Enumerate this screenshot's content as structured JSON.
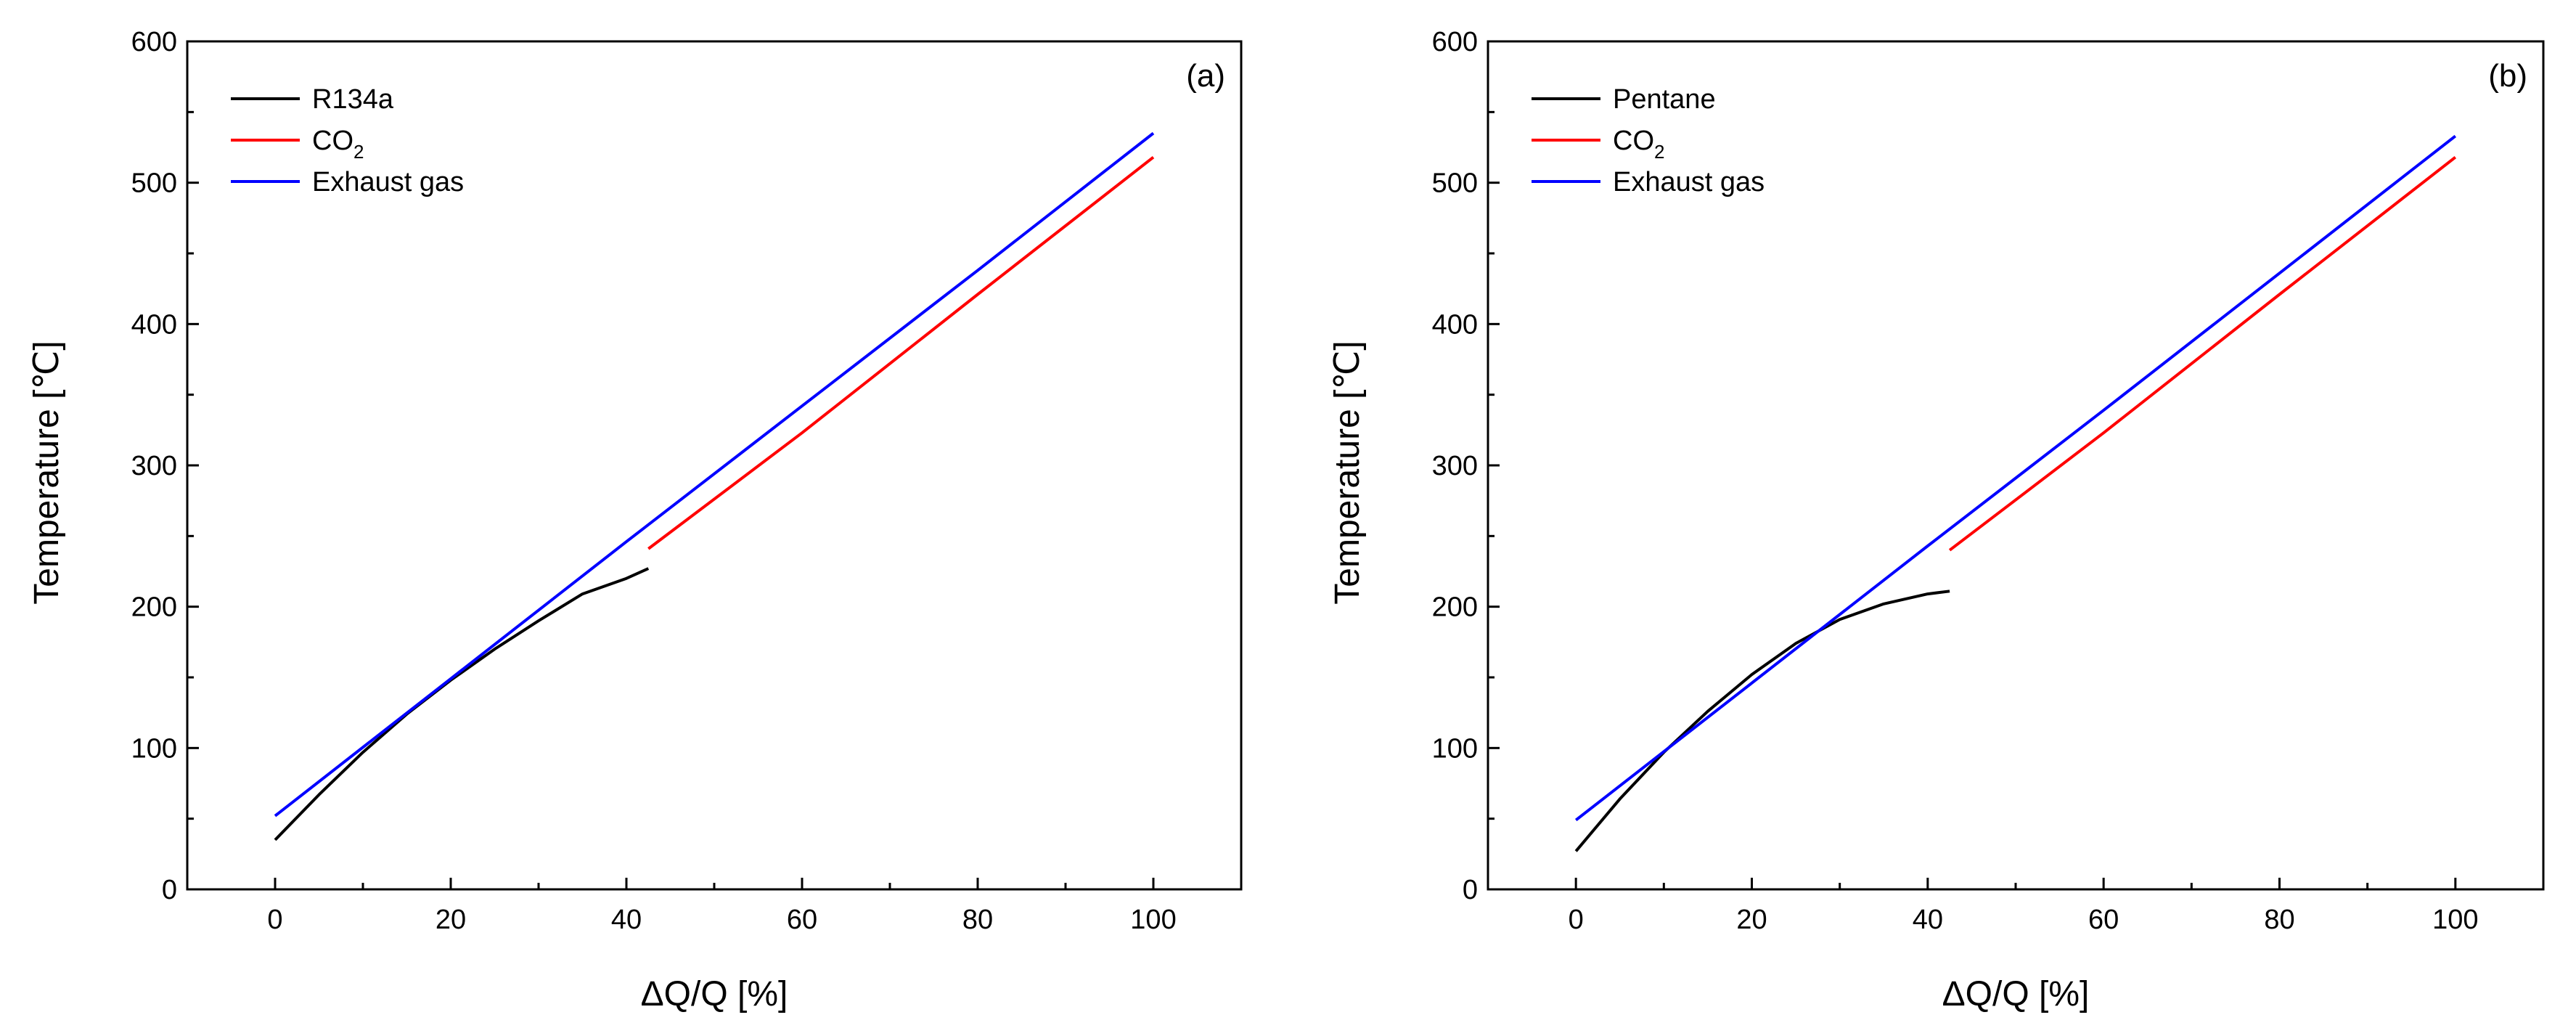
{
  "chart_data": [
    {
      "type": "line",
      "panel_label": "(a)",
      "xlabel": "ΔQ/Q [%]",
      "ylabel": "Temperature [℃]",
      "xlim": [
        -10,
        110
      ],
      "ylim": [
        0,
        600
      ],
      "xticks": [
        0,
        20,
        40,
        60,
        80,
        100
      ],
      "yticks": [
        0,
        100,
        200,
        300,
        400,
        500,
        600
      ],
      "legend_position": "top-left",
      "series": [
        {
          "name": "R134a",
          "sub": "",
          "color": "#000000",
          "x": [
            0,
            5,
            10,
            15,
            20,
            25,
            30,
            35,
            40,
            42.5
          ],
          "y": [
            35,
            67,
            97,
            124,
            148,
            170,
            190,
            209,
            220,
            227
          ]
        },
        {
          "name": "CO",
          "sub": "2",
          "color": "#ff0000",
          "x": [
            42.5,
            60,
            80,
            100
          ],
          "y": [
            241,
            323,
            421,
            518
          ]
        },
        {
          "name": "Exhaust gas",
          "sub": "",
          "color": "#0000ff",
          "x": [
            0,
            20,
            40,
            60,
            80,
            100
          ],
          "y": [
            52,
            149,
            246,
            342,
            438,
            535
          ]
        }
      ]
    },
    {
      "type": "line",
      "panel_label": "(b)",
      "xlabel": "ΔQ/Q [%]",
      "ylabel": "Temperature [℃]",
      "xlim": [
        -10,
        110
      ],
      "ylim": [
        0,
        600
      ],
      "xticks": [
        0,
        20,
        40,
        60,
        80,
        100
      ],
      "yticks": [
        0,
        100,
        200,
        300,
        400,
        500,
        600
      ],
      "legend_position": "top-left",
      "series": [
        {
          "name": "Pentane",
          "sub": "",
          "color": "#000000",
          "x": [
            0,
            5,
            10,
            15,
            20,
            25,
            30,
            35,
            40,
            42.5
          ],
          "y": [
            27,
            64,
            97,
            126,
            152,
            174,
            191,
            202,
            209,
            211
          ]
        },
        {
          "name": "CO",
          "sub": "2",
          "color": "#ff0000",
          "x": [
            42.5,
            60,
            80,
            100
          ],
          "y": [
            240,
            323,
            421,
            518
          ]
        },
        {
          "name": "Exhaust gas",
          "sub": "",
          "color": "#0000ff",
          "x": [
            0,
            20,
            40,
            60,
            80,
            100
          ],
          "y": [
            49,
            146,
            243,
            339,
            436,
            533
          ]
        }
      ]
    }
  ]
}
